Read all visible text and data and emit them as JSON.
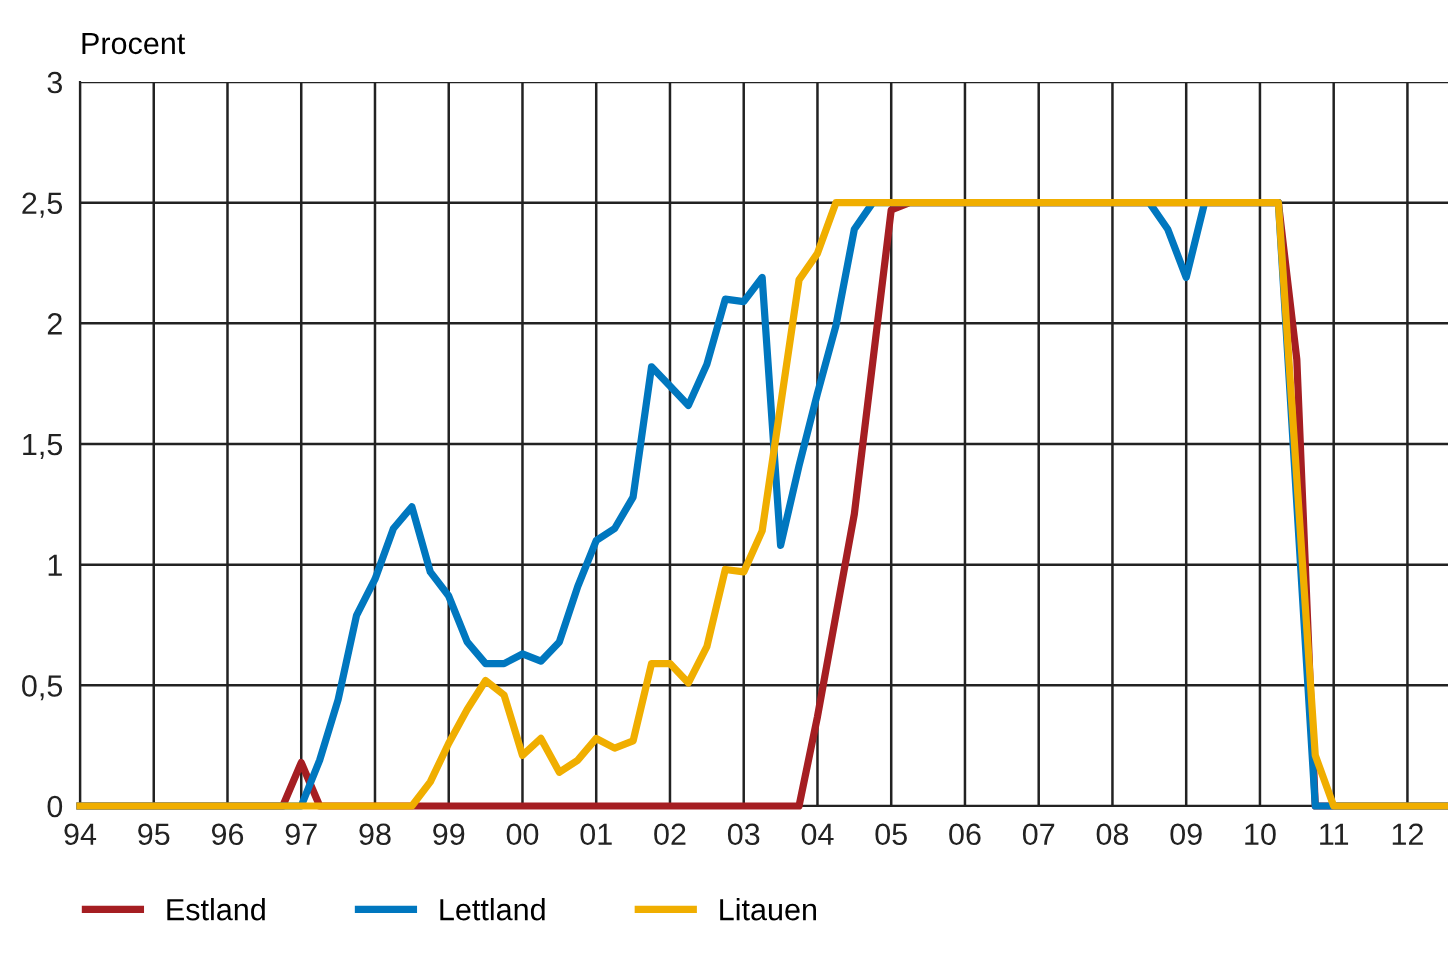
{
  "chart_data": {
    "type": "line",
    "ylabel": "Procent",
    "xlim": [
      1994,
      2012.55
    ],
    "ylim": [
      0,
      3
    ],
    "xticks": [
      {
        "value": 1994,
        "label": "94"
      },
      {
        "value": 1995,
        "label": "95"
      },
      {
        "value": 1996,
        "label": "96"
      },
      {
        "value": 1997,
        "label": "97"
      },
      {
        "value": 1998,
        "label": "98"
      },
      {
        "value": 1999,
        "label": "99"
      },
      {
        "value": 2000,
        "label": "00"
      },
      {
        "value": 2001,
        "label": "01"
      },
      {
        "value": 2002,
        "label": "02"
      },
      {
        "value": 2003,
        "label": "03"
      },
      {
        "value": 2004,
        "label": "04"
      },
      {
        "value": 2005,
        "label": "05"
      },
      {
        "value": 2006,
        "label": "06"
      },
      {
        "value": 2007,
        "label": "07"
      },
      {
        "value": 2008,
        "label": "08"
      },
      {
        "value": 2009,
        "label": "09"
      },
      {
        "value": 2010,
        "label": "10"
      },
      {
        "value": 2011,
        "label": "11"
      },
      {
        "value": 2012,
        "label": "12"
      }
    ],
    "yticks": [
      0,
      {
        "value": 0.5,
        "label": "0,5"
      },
      1,
      {
        "value": 1.5,
        "label": "1,5"
      },
      2,
      {
        "value": 2.5,
        "label": "2,5"
      },
      3
    ],
    "grid": true,
    "legend": "bottom",
    "marker": "none",
    "line_style": "solid",
    "series": [
      {
        "name": "Estland",
        "color": "#a51e22",
        "x": [
          1994,
          1996.75,
          1997,
          1997.25,
          2003.75,
          2004,
          2004.5,
          2005,
          2005.25,
          2010.25,
          2010.5,
          2010.75,
          2012.55
        ],
        "values": [
          0,
          0,
          0.18,
          0,
          0,
          0.37,
          1.21,
          2.47,
          2.5,
          2.5,
          1.85,
          0,
          0
        ]
      },
      {
        "name": "Lettland",
        "color": "#0077bf",
        "x": [
          1994,
          1997,
          1997.25,
          1997.5,
          1997.75,
          1998,
          1998.25,
          1998.5,
          1998.75,
          1999,
          1999.25,
          1999.5,
          1999.75,
          2000,
          2000.25,
          2000.5,
          2000.75,
          2001,
          2001.25,
          2001.5,
          2001.75,
          2002,
          2002.25,
          2002.5,
          2002.75,
          2003,
          2003.25,
          2003.5,
          2003.75,
          2004,
          2004.25,
          2004.5,
          2004.75,
          2008.5,
          2008.75,
          2009,
          2009.25,
          2010.25,
          2010.75,
          2012.55
        ],
        "values": [
          0,
          0,
          0.19,
          0.44,
          0.79,
          0.94,
          1.15,
          1.24,
          0.97,
          0.87,
          0.68,
          0.59,
          0.59,
          0.63,
          0.6,
          0.68,
          0.91,
          1.1,
          1.15,
          1.28,
          1.82,
          1.74,
          1.66,
          1.83,
          2.1,
          2.09,
          2.19,
          1.08,
          1.41,
          1.71,
          1.99,
          2.39,
          2.5,
          2.5,
          2.39,
          2.19,
          2.5,
          2.5,
          0,
          0
        ]
      },
      {
        "name": "Litauen",
        "color": "#f0ae00",
        "x": [
          1994,
          1998.5,
          1998.75,
          1999,
          1999.25,
          1999.5,
          1999.75,
          2000,
          2000.25,
          2000.5,
          2000.75,
          2001,
          2001.25,
          2001.5,
          2001.75,
          2002,
          2002.25,
          2002.5,
          2002.75,
          2003,
          2003.25,
          2003.5,
          2003.75,
          2004,
          2004.25,
          2010.25,
          2010.75,
          2011,
          2012.55
        ],
        "values": [
          0,
          0,
          0.1,
          0.26,
          0.4,
          0.52,
          0.46,
          0.21,
          0.28,
          0.14,
          0.19,
          0.28,
          0.24,
          0.27,
          0.59,
          0.59,
          0.51,
          0.66,
          0.98,
          0.97,
          1.14,
          1.66,
          2.18,
          2.29,
          2.5,
          2.5,
          0.21,
          0,
          0
        ]
      }
    ]
  }
}
